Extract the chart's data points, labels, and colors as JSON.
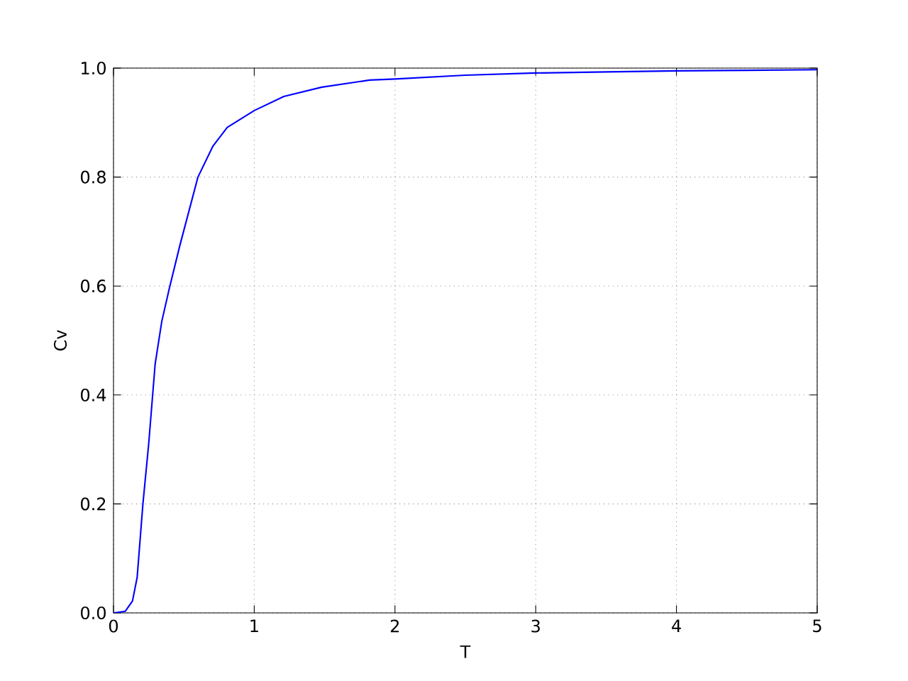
{
  "chart_data": {
    "type": "line",
    "xlabel": "T",
    "ylabel": "Cv",
    "x": [
      0,
      0.084,
      0.135,
      0.168,
      0.209,
      0.25,
      0.296,
      0.343,
      0.397,
      0.471,
      0.6,
      0.707,
      0.808,
      1.0,
      1.21,
      1.48,
      1.82,
      2.0,
      2.5,
      3.0,
      3.5,
      4.0,
      4.5,
      5.0
    ],
    "values": [
      0,
      0.003,
      0.022,
      0.065,
      0.2,
      0.31,
      0.457,
      0.535,
      0.596,
      0.674,
      0.8,
      0.857,
      0.891,
      0.922,
      0.948,
      0.965,
      0.978,
      0.98,
      0.987,
      0.991,
      0.993,
      0.995,
      0.996,
      0.997
    ],
    "color": "#0000ff",
    "marker": "none",
    "line_style": "solid",
    "grid": true,
    "xlim": [
      0,
      5
    ],
    "ylim": [
      0,
      1.0
    ],
    "xticks": [
      0,
      1,
      2,
      3,
      4,
      5
    ],
    "yticks": [
      {
        "value": 0,
        "label": "0.0"
      },
      {
        "value": 0.2,
        "label": "0.2"
      },
      {
        "value": 0.4,
        "label": "0.4"
      },
      {
        "value": 0.6,
        "label": "0.6"
      },
      {
        "value": 0.8,
        "label": "0.8"
      },
      {
        "value": 1.0,
        "label": "1.0"
      }
    ]
  }
}
